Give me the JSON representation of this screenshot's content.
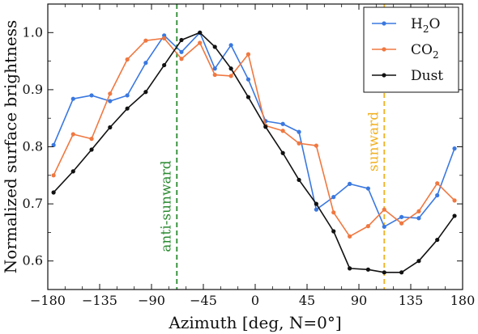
{
  "chart_data": {
    "type": "line",
    "title": "",
    "xlabel": "Azimuth [deg, N=0°]",
    "ylabel": "Normalized surface brightness",
    "xlim": [
      -180,
      180
    ],
    "ylim": [
      0.55,
      1.05
    ],
    "xticks": [
      -180,
      -135,
      -90,
      -45,
      0,
      45,
      90,
      135,
      180
    ],
    "xtick_labels": [
      "−180",
      "−135",
      "−90",
      "−45",
      "0",
      "45",
      "90",
      "135",
      "180"
    ],
    "yticks": [
      0.6,
      0.7,
      0.8,
      0.9,
      1.0
    ],
    "ytick_labels": [
      "0.6",
      "0.7",
      "0.8",
      "0.9",
      "1.0"
    ],
    "grid": false,
    "legend_position": "top-right",
    "series": [
      {
        "name": "H2O",
        "name_main": "H",
        "name_sub": "2",
        "name_tail": "O",
        "color": "#3a78e0",
        "x": [
          -175,
          -158,
          -142,
          -126,
          -111,
          -95,
          -79,
          -64,
          -48,
          -35,
          -21,
          -6,
          9,
          24,
          38,
          53,
          68,
          82,
          98,
          112,
          127,
          142,
          158,
          173
        ],
        "y": [
          0.803,
          0.884,
          0.89,
          0.88,
          0.89,
          0.947,
          0.995,
          0.966,
          1.0,
          0.937,
          0.978,
          0.918,
          0.845,
          0.84,
          0.826,
          0.69,
          0.712,
          0.735,
          0.727,
          0.66,
          0.677,
          0.675,
          0.715,
          0.797
        ]
      },
      {
        "name": "CO2",
        "name_main": "CO",
        "name_sub": "2",
        "name_tail": "",
        "color": "#f07840",
        "x": [
          -175,
          -158,
          -142,
          -126,
          -111,
          -95,
          -79,
          -64,
          -48,
          -35,
          -21,
          -6,
          9,
          24,
          38,
          53,
          68,
          82,
          98,
          112,
          127,
          142,
          158,
          173
        ],
        "y": [
          0.75,
          0.822,
          0.814,
          0.893,
          0.953,
          0.986,
          0.99,
          0.954,
          0.982,
          0.926,
          0.924,
          0.962,
          0.837,
          0.828,
          0.806,
          0.802,
          0.685,
          0.643,
          0.661,
          0.69,
          0.666,
          0.687,
          0.736,
          0.706
        ]
      },
      {
        "name": "Dust",
        "name_main": "Dust",
        "name_sub": "",
        "name_tail": "",
        "color": "#111111",
        "x": [
          -175,
          -158,
          -142,
          -126,
          -111,
          -95,
          -79,
          -64,
          -48,
          -35,
          -21,
          -6,
          9,
          24,
          38,
          53,
          68,
          82,
          98,
          112,
          127,
          142,
          158,
          173
        ],
        "y": [
          0.72,
          0.757,
          0.795,
          0.834,
          0.867,
          0.896,
          0.943,
          0.987,
          1.0,
          0.975,
          0.937,
          0.887,
          0.835,
          0.789,
          0.742,
          0.7,
          0.652,
          0.587,
          0.585,
          0.58,
          0.58,
          0.6,
          0.637,
          0.679
        ]
      }
    ],
    "annotations": [
      {
        "label": "anti-sunward",
        "x": -68,
        "color": "#2a8a30",
        "style": "dashed"
      },
      {
        "label": "sunward",
        "x": 112,
        "color": "#f0b020",
        "style": "dashed"
      }
    ]
  }
}
